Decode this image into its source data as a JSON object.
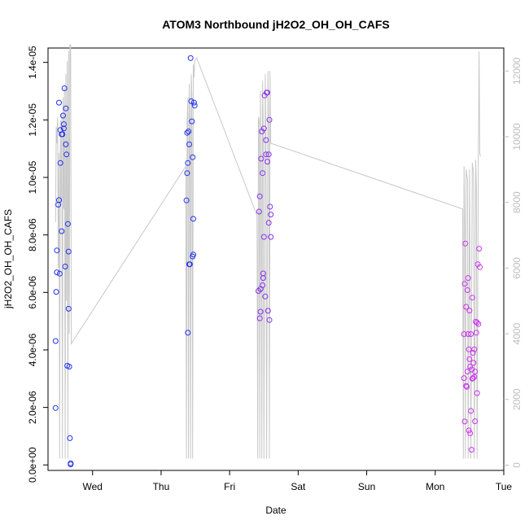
{
  "chart_data": {
    "type": "scatter",
    "title": "ATOM3 Northbound jH2O2_OH_OH_CAFS",
    "xlabel": "Date",
    "ylabel": "jH2O2_OH_OH_CAFS",
    "x_unit": "days",
    "x_ticks": [
      {
        "value": 1,
        "label": "Wed"
      },
      {
        "value": 2,
        "label": "Thu"
      },
      {
        "value": 3,
        "label": "Fri"
      },
      {
        "value": 4,
        "label": "Sat"
      },
      {
        "value": 5,
        "label": "Sun"
      },
      {
        "value": 6,
        "label": "Mon"
      },
      {
        "value": 7,
        "label": "Tue"
      }
    ],
    "y_ticks": [
      {
        "value": 0,
        "label": "0.0e+00"
      },
      {
        "value": 2e-06,
        "label": "2.0e-06"
      },
      {
        "value": 4e-06,
        "label": "4.0e-06"
      },
      {
        "value": 6e-06,
        "label": "6.0e-06"
      },
      {
        "value": 8e-06,
        "label": "8.0e-06"
      },
      {
        "value": 1e-05,
        "label": "1.0e-05"
      },
      {
        "value": 1.2e-05,
        "label": "1.2e-05"
      },
      {
        "value": 1.4e-05,
        "label": "1.4e-05"
      }
    ],
    "y2_ticks": [
      {
        "value": 0,
        "label": "0"
      },
      {
        "value": 2000,
        "label": "2000"
      },
      {
        "value": 4000,
        "label": "4000"
      },
      {
        "value": 6000,
        "label": "6000"
      },
      {
        "value": 8000,
        "label": "8000"
      },
      {
        "value": 10000,
        "label": "10000"
      },
      {
        "value": 12000,
        "label": "12000"
      }
    ],
    "xlim": [
      0.35,
      7.0
    ],
    "ylim": [
      -1.9e-07,
      1.45e-05
    ],
    "y2lim": [
      -160,
      12700
    ],
    "grid": false,
    "colors": {
      "blue": "#2233ee",
      "purple": "#8833ee",
      "magenta": "#cc33ee",
      "altitude": "#c8c8c8",
      "axis": "#000000",
      "right_axis": "#bdbdbd"
    },
    "series": [
      {
        "color_key": "blue",
        "points": [
          [
            0.46,
            1.98e-06
          ],
          [
            0.46,
            4.31e-06
          ],
          [
            0.47,
            6.02e-06
          ],
          [
            0.48,
            7.46e-06
          ],
          [
            0.48,
            6.7e-06
          ],
          [
            0.5,
            9.05e-06
          ],
          [
            0.51,
            9.21e-06
          ],
          [
            0.51,
            1.26e-05
          ],
          [
            0.52,
            6.65e-06
          ],
          [
            0.53,
            1.05e-05
          ],
          [
            0.53,
            1.165e-05
          ],
          [
            0.55,
            1.15e-05
          ],
          [
            0.55,
            8.13e-06
          ],
          [
            0.56,
            1.15e-05
          ],
          [
            0.57,
            1.215e-05
          ],
          [
            0.58,
            1.185e-05
          ],
          [
            0.58,
            1.17e-05
          ],
          [
            0.59,
            1.31e-05
          ],
          [
            0.6,
            6.9e-06
          ],
          [
            0.61,
            1.24e-05
          ],
          [
            0.61,
            1.115e-05
          ],
          [
            0.62,
            1.08e-05
          ],
          [
            0.63,
            3.45e-06
          ],
          [
            0.64,
            8.38e-06
          ],
          [
            0.65,
            7.42e-06
          ],
          [
            0.65,
            5.43e-06
          ],
          [
            0.66,
            3.42e-06
          ],
          [
            0.67,
            9.3e-07
          ],
          [
            0.68,
            6e-08
          ],
          [
            0.68,
            2e-08
          ],
          [
            2.37,
            9.2e-06
          ],
          [
            2.38,
            1.015e-05
          ],
          [
            2.38,
            1.155e-05
          ],
          [
            2.39,
            4.6e-06
          ],
          [
            2.39,
            1.05e-05
          ],
          [
            2.4,
            1.16e-05
          ],
          [
            2.41,
            1.115e-05
          ],
          [
            2.41,
            6.98e-06
          ],
          [
            2.42,
            6.98e-06
          ],
          [
            2.43,
            1.415e-05
          ],
          [
            2.44,
            1.265e-05
          ],
          [
            2.45,
            1.195e-05
          ],
          [
            2.46,
            1.07e-05
          ],
          [
            2.46,
            7.25e-06
          ],
          [
            2.47,
            7.32e-06
          ],
          [
            2.47,
            8.56e-06
          ],
          [
            2.48,
            1.26e-05
          ],
          [
            2.49,
            1.25e-05
          ]
        ]
      },
      {
        "color_key": "purple",
        "points": [
          [
            3.42,
            6.05e-06
          ],
          [
            3.43,
            8.81e-06
          ],
          [
            3.44,
            5.1e-06
          ],
          [
            3.44,
            9.34e-06
          ],
          [
            3.45,
            5.33e-06
          ],
          [
            3.45,
            6.12e-06
          ],
          [
            3.46,
            1.065e-05
          ],
          [
            3.47,
            1.16e-05
          ],
          [
            3.48,
            1.015e-05
          ],
          [
            3.48,
            6.25e-06
          ],
          [
            3.49,
            6.5e-06
          ],
          [
            3.49,
            6.66e-06
          ],
          [
            3.5,
            7.93e-06
          ],
          [
            3.5,
            1.17e-05
          ],
          [
            3.51,
            1.285e-05
          ],
          [
            3.52,
            5.86e-06
          ],
          [
            3.53,
            1.08e-05
          ],
          [
            3.53,
            1.13e-05
          ],
          [
            3.54,
            1.295e-05
          ],
          [
            3.55,
            1.295e-05
          ],
          [
            3.55,
            1.055e-05
          ],
          [
            3.56,
            5.36e-06
          ],
          [
            3.57,
            8.42e-06
          ],
          [
            3.57,
            1.08e-05
          ],
          [
            3.58,
            1.2e-05
          ],
          [
            3.58,
            5.04e-06
          ],
          [
            3.59,
            8.98e-06
          ],
          [
            3.6,
            8.71e-06
          ],
          [
            3.6,
            7.93e-06
          ]
        ]
      },
      {
        "color_key": "magenta",
        "points": [
          [
            6.42,
            4.55e-06
          ],
          [
            6.42,
            3.02e-06
          ],
          [
            6.43,
            1.51e-06
          ],
          [
            6.43,
            6.3e-06
          ],
          [
            6.44,
            7.7e-06
          ],
          [
            6.45,
            5.5e-06
          ],
          [
            6.45,
            2.75e-06
          ],
          [
            6.46,
            2.72e-06
          ],
          [
            6.47,
            6.08e-06
          ],
          [
            6.47,
            3.25e-06
          ],
          [
            6.48,
            6.5e-06
          ],
          [
            6.48,
            4.55e-06
          ],
          [
            6.49,
            1.2e-06
          ],
          [
            6.49,
            4.02e-06
          ],
          [
            6.5,
            5.37e-06
          ],
          [
            6.5,
            3.68e-06
          ],
          [
            6.51,
            1.1e-06
          ],
          [
            6.51,
            3.42e-06
          ],
          [
            6.52,
            4.55e-06
          ],
          [
            6.52,
            1.88e-06
          ],
          [
            6.53,
            3.32e-06
          ],
          [
            6.53,
            5.3e-07
          ],
          [
            6.54,
            5.82e-06
          ],
          [
            6.54,
            3e-06
          ],
          [
            6.55,
            3.02e-06
          ],
          [
            6.55,
            3.9e-06
          ],
          [
            6.56,
            3.55e-06
          ],
          [
            6.57,
            4.02e-06
          ],
          [
            6.57,
            3.06e-06
          ],
          [
            6.58,
            1.52e-06
          ],
          [
            6.58,
            3.25e-06
          ],
          [
            6.59,
            4.98e-06
          ],
          [
            6.6,
            4.6e-06
          ],
          [
            6.61,
            2.5e-06
          ],
          [
            6.61,
            4.95e-06
          ],
          [
            6.62,
            6.98e-06
          ],
          [
            6.63,
            4.9e-06
          ],
          [
            6.64,
            7.52e-06
          ],
          [
            6.65,
            6.88e-06
          ]
        ]
      }
    ],
    "altitude_series": {
      "color_key": "altitude",
      "points": [
        [
          0.46,
          7400
        ],
        [
          0.47,
          10300
        ],
        [
          0.48,
          9800
        ],
        [
          0.49,
          10600
        ],
        [
          0.5,
          6000
        ],
        [
          0.51,
          9500
        ],
        [
          0.52,
          200
        ],
        [
          0.53,
          10500
        ],
        [
          0.54,
          8000
        ],
        [
          0.55,
          10700
        ],
        [
          0.56,
          200
        ],
        [
          0.57,
          11200
        ],
        [
          0.58,
          7800
        ],
        [
          0.59,
          11500
        ],
        [
          0.6,
          200
        ],
        [
          0.61,
          11900
        ],
        [
          0.62,
          5000
        ],
        [
          0.63,
          12300
        ],
        [
          0.64,
          200
        ],
        [
          0.65,
          12600
        ],
        [
          0.66,
          4000
        ],
        [
          0.67,
          12800
        ],
        [
          0.68,
          12800
        ],
        [
          0.69,
          3700
        ],
        [
          2.36,
          9100
        ],
        [
          2.37,
          200
        ],
        [
          2.38,
          10400
        ],
        [
          2.39,
          11200
        ],
        [
          2.4,
          200
        ],
        [
          2.41,
          11600
        ],
        [
          2.42,
          10500
        ],
        [
          2.43,
          200
        ],
        [
          2.44,
          11900
        ],
        [
          2.45,
          11200
        ],
        [
          2.46,
          200
        ],
        [
          2.47,
          12200
        ],
        [
          2.48,
          11800
        ],
        [
          2.49,
          12300
        ],
        [
          2.52,
          12400
        ],
        [
          3.4,
          7600
        ],
        [
          3.41,
          200
        ],
        [
          3.42,
          10600
        ],
        [
          3.43,
          10500
        ],
        [
          3.44,
          200
        ],
        [
          3.45,
          11400
        ],
        [
          3.46,
          9300
        ],
        [
          3.47,
          200
        ],
        [
          3.48,
          11700
        ],
        [
          3.49,
          10500
        ],
        [
          3.5,
          200
        ],
        [
          3.52,
          11900
        ],
        [
          3.53,
          9700
        ],
        [
          3.54,
          200
        ],
        [
          3.56,
          12000
        ],
        [
          3.57,
          10200
        ],
        [
          3.58,
          200
        ],
        [
          3.59,
          12000
        ],
        [
          3.6,
          9800
        ],
        [
          6.4,
          7800
        ],
        [
          6.41,
          200
        ],
        [
          6.42,
          9100
        ],
        [
          6.43,
          7400
        ],
        [
          6.44,
          200
        ],
        [
          6.45,
          9000
        ],
        [
          6.47,
          8700
        ],
        [
          6.48,
          200
        ],
        [
          6.5,
          9000
        ],
        [
          6.52,
          200
        ],
        [
          6.54,
          9200
        ],
        [
          6.56,
          8900
        ],
        [
          6.57,
          200
        ],
        [
          6.59,
          9300
        ],
        [
          6.6,
          8500
        ],
        [
          6.61,
          200
        ],
        [
          6.63,
          9600
        ],
        [
          6.64,
          12600
        ],
        [
          6.65,
          9500
        ],
        [
          6.66,
          9400
        ]
      ]
    }
  }
}
